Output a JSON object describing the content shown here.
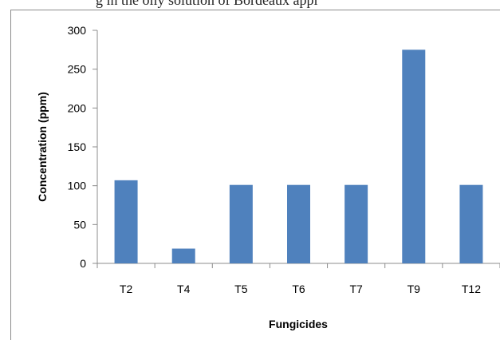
{
  "header_fragment": "g in the oily solution of Bordeaux appl",
  "chart_data": {
    "type": "bar",
    "categories": [
      "T2",
      "T4",
      "T5",
      "T6",
      "T7",
      "T9",
      "T12"
    ],
    "values": [
      107,
      19,
      101,
      101,
      101,
      275,
      101
    ],
    "xlabel": "Fungicides",
    "ylabel": "Concentration (ppm)",
    "ylim": [
      0,
      300
    ],
    "yticks": [
      0,
      50,
      100,
      150,
      200,
      250,
      300
    ],
    "grid": false,
    "legend": "none",
    "bar_color": "#4f81bd"
  }
}
